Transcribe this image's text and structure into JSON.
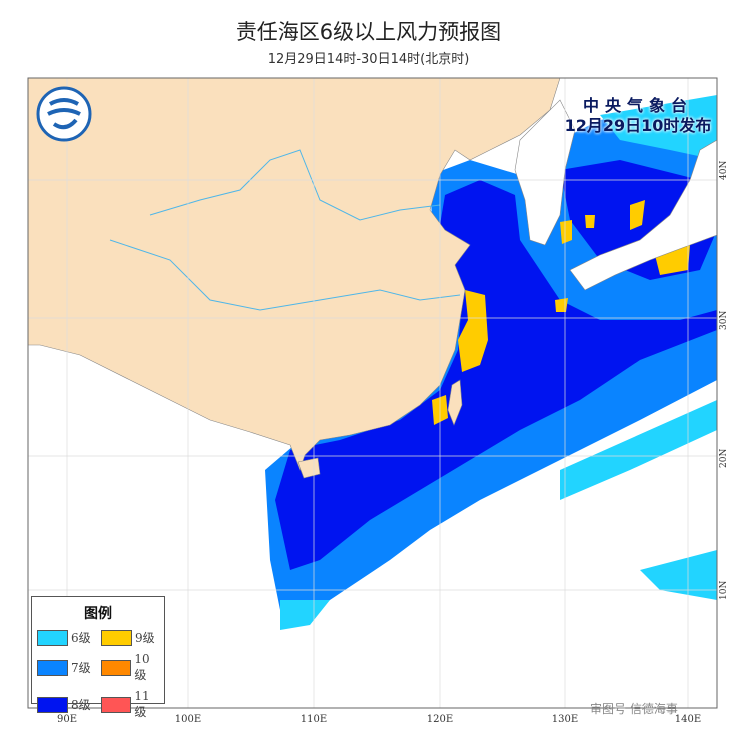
{
  "header": {
    "title": "责任海区6级以上风力预报图",
    "subtitle": "12月29日14时-30日14时(北京时)"
  },
  "issuer": {
    "org": "中央气象台",
    "issued": "12月29日10时发布"
  },
  "axes": {
    "longitudes": [
      "90E",
      "100E",
      "110E",
      "120E",
      "130E",
      "140E"
    ],
    "latitudes": [
      "40N",
      "30N",
      "20N",
      "10N"
    ]
  },
  "legend": {
    "title": "图例",
    "items": [
      {
        "label": "6级",
        "color": "#22d4ff"
      },
      {
        "label": "9级",
        "color": "#ffcc00"
      },
      {
        "label": "7级",
        "color": "#0a84ff"
      },
      {
        "label": "10级",
        "color": "#ff8800"
      },
      {
        "label": "8级",
        "color": "#0014f0"
      },
      {
        "label": "11级",
        "color": "#ff5555"
      }
    ]
  },
  "colors": {
    "china_land": "#fae0bd",
    "other_land": "#ffffff",
    "river": "#4fb6e8"
  },
  "logo": {
    "name": "cma-logo-icon"
  },
  "watermark": {
    "text": "审图号  信德海事"
  }
}
